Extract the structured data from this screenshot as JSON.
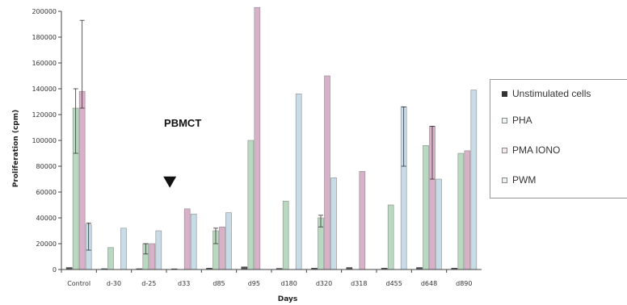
{
  "chart_data": {
    "type": "bar",
    "title": "",
    "xlabel": "Days",
    "ylabel": "Proliferation (cpm)",
    "ylim": [
      0,
      200000
    ],
    "yticks": [
      0,
      20000,
      40000,
      60000,
      80000,
      100000,
      120000,
      140000,
      160000,
      180000,
      200000
    ],
    "ytick_labels": [
      "0",
      "20000",
      "40000",
      "60000",
      "80000",
      "100000",
      "120000",
      "140000",
      "160000",
      "180000",
      "200000"
    ],
    "categories": [
      "Control",
      "d-30",
      "d-25",
      "d33",
      "d85",
      "d95",
      "d180",
      "d320",
      "d318",
      "d455",
      "d648",
      "d890"
    ],
    "series": [
      {
        "name": "Unstimulated cells",
        "color": "#555555",
        "values": [
          1500,
          600,
          600,
          500,
          1000,
          2000,
          800,
          1000,
          1500,
          1000,
          1500,
          1000
        ]
      },
      {
        "name": "PHA",
        "color": "#b8d8c0",
        "values": [
          125000,
          17000,
          20000,
          0,
          30000,
          100000,
          53000,
          40000,
          0,
          50000,
          96000,
          90000
        ]
      },
      {
        "name": "PMA IONO",
        "color": "#d8b0c8",
        "values": [
          138000,
          0,
          20000,
          47000,
          33000,
          203000,
          0,
          150000,
          76000,
          0,
          111000,
          92000
        ]
      },
      {
        "name": "PWM",
        "color": "#c8dce8",
        "values": [
          35000,
          32000,
          30000,
          43000,
          44000,
          0,
          136000,
          71000,
          0,
          126000,
          70000,
          139000
        ]
      }
    ],
    "error_bars": [
      {
        "series": "PHA",
        "category": "Control",
        "low": 90000,
        "high": 140000
      },
      {
        "series": "PMA IONO",
        "category": "Control",
        "low": 125000,
        "high": 193000
      },
      {
        "series": "PWM",
        "category": "Control",
        "low": 15000,
        "high": 36000
      },
      {
        "series": "PHA",
        "category": "d-25",
        "low": 12000,
        "high": 20000
      },
      {
        "series": "PHA",
        "category": "d85",
        "low": 20000,
        "high": 32000
      },
      {
        "series": "PHA",
        "category": "d320",
        "low": 33000,
        "high": 42000
      },
      {
        "series": "PWM",
        "category": "d455",
        "low": 80000,
        "high": 126000
      },
      {
        "series": "PMA IONO",
        "category": "d648",
        "low": 70000,
        "high": 111000
      }
    ],
    "annotation": {
      "text": "PBMCT",
      "category": "d33",
      "value": 62000
    },
    "legend_position": "right",
    "grid": false
  }
}
